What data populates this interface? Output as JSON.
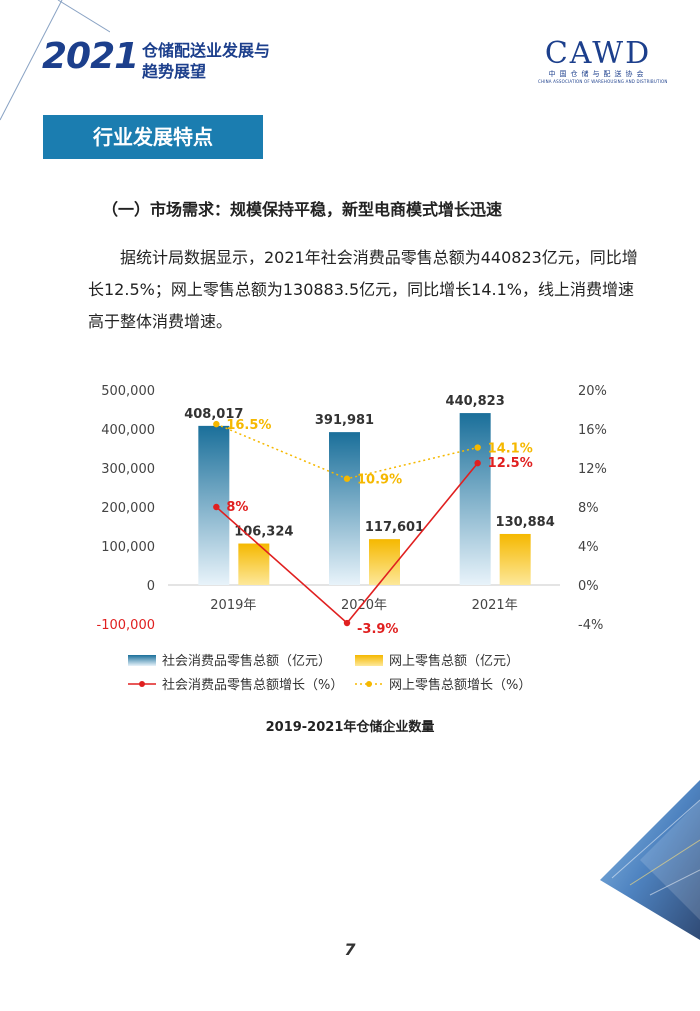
{
  "header": {
    "year": "2021",
    "title_line1": "仓储配送业发展与",
    "title_line2": "趋势展望"
  },
  "logo": {
    "name": "CAWD",
    "cn": "中国仓储与配送协会",
    "en": "CHINA ASSOCIATION OF WAREHOUSING AND DISTRIBUTION"
  },
  "section_title": "行业发展特点",
  "subheading": "（一）市场需求：规模保持平稳，新型电商模式增长迅速",
  "body_text": "据统计局数据显示，2021年社会消费品零售总额为440823亿元，同比增长12.5%；网上零售总额为130883.5亿元，同比增长14.1%，线上消费增速高于整体消费增速。",
  "chart_data": {
    "type": "bar",
    "title": "2019-2021年仓储企业数量",
    "categories": [
      "2019年",
      "2020年",
      "2021年"
    ],
    "left_axis": {
      "ylim": [
        -100000,
        500000
      ],
      "ticks": [
        "500,000",
        "400,000",
        "300,000",
        "200,000",
        "100,000",
        "0",
        "-100,000"
      ]
    },
    "right_axis": {
      "ylim": [
        -4,
        20
      ],
      "ticks": [
        "20%",
        "16%",
        "12%",
        "8%",
        "4%",
        "0%",
        "-4%"
      ]
    },
    "series": [
      {
        "name": "社会消费品零售总额（亿元）",
        "kind": "bar",
        "axis": "left",
        "color": "#1a6f9a",
        "values": [
          408017,
          391981,
          440823
        ],
        "labels": [
          "408,017",
          "391,981",
          "440,823"
        ]
      },
      {
        "name": "网上零售总额（亿元）",
        "kind": "bar",
        "axis": "left",
        "color": "#f5b800",
        "values": [
          106324,
          117601,
          130884
        ],
        "labels": [
          "106,324",
          "117,601",
          "130,884"
        ]
      },
      {
        "name": "社会消费品零售总额增长（%）",
        "kind": "line",
        "axis": "right",
        "color": "#e02020",
        "values": [
          8,
          -3.9,
          12.5
        ],
        "labels": [
          "8%",
          "-3.9%",
          "12.5%"
        ]
      },
      {
        "name": "网上零售总额增长（%）",
        "kind": "line",
        "axis": "right",
        "color": "#f5b800",
        "dashed": true,
        "values": [
          16.5,
          10.9,
          14.1
        ],
        "labels": [
          "16.5%",
          "10.9%",
          "14.1%"
        ]
      }
    ],
    "legend_position": "bottom",
    "grid": false
  },
  "page_number": "7"
}
